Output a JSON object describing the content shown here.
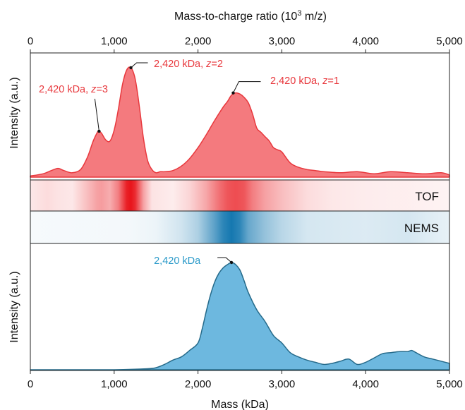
{
  "chart_data": {
    "type": "area",
    "top_axis": {
      "label_prefix": "Mass-to-charge ratio (10",
      "label_sup": "3",
      "label_suffix": " m/z)",
      "xlim": [
        0,
        5000
      ],
      "ticks": [
        0,
        1000,
        2000,
        3000,
        4000,
        5000
      ],
      "tick_labels": [
        "0",
        "1,000",
        "2,000",
        "3,000",
        "4,000",
        "5,000"
      ]
    },
    "bottom_axis": {
      "label": "Mass (kDa)",
      "xlim": [
        0,
        5000
      ],
      "ticks": [
        0,
        1000,
        2000,
        3000,
        4000,
        5000
      ],
      "tick_labels": [
        "0",
        "1,000",
        "2,000",
        "3,000",
        "4,000",
        "5,000"
      ]
    },
    "ylabel": "Intensity (a.u.)",
    "series": [
      {
        "name": "TOF",
        "color": "#e8383d",
        "fill": "#f47a7e",
        "x": [
          0,
          150,
          250,
          330,
          400,
          500,
          600,
          680,
          750,
          800,
          820,
          850,
          900,
          950,
          1000,
          1050,
          1100,
          1150,
          1200,
          1250,
          1300,
          1350,
          1400,
          1450,
          1500,
          1550,
          1600,
          1700,
          1800,
          1900,
          2000,
          2100,
          2200,
          2300,
          2350,
          2400,
          2450,
          2500,
          2550,
          2600,
          2650,
          2700,
          2750,
          2800,
          2850,
          2900,
          2950,
          3000,
          3100,
          3200,
          3300,
          3400,
          3500,
          3700,
          3900,
          4100,
          4300,
          4500,
          4700,
          4900,
          5000
        ],
        "y": [
          0.01,
          0.03,
          0.06,
          0.08,
          0.06,
          0.04,
          0.07,
          0.18,
          0.33,
          0.41,
          0.42,
          0.4,
          0.34,
          0.33,
          0.43,
          0.62,
          0.85,
          0.98,
          1.0,
          0.9,
          0.65,
          0.35,
          0.15,
          0.07,
          0.04,
          0.05,
          0.05,
          0.06,
          0.1,
          0.17,
          0.27,
          0.39,
          0.52,
          0.64,
          0.69,
          0.75,
          0.77,
          0.76,
          0.73,
          0.68,
          0.58,
          0.45,
          0.41,
          0.37,
          0.33,
          0.27,
          0.25,
          0.23,
          0.13,
          0.09,
          0.07,
          0.06,
          0.05,
          0.04,
          0.05,
          0.03,
          0.05,
          0.04,
          0.03,
          0.04,
          0.02
        ]
      },
      {
        "name": "NEMS",
        "color": "#256a8a",
        "fill": "#6db8df",
        "x": [
          0,
          500,
          1000,
          1400,
          1500,
          1600,
          1700,
          1800,
          1900,
          2000,
          2050,
          2100,
          2150,
          2200,
          2250,
          2300,
          2350,
          2400,
          2450,
          2500,
          2550,
          2600,
          2700,
          2800,
          2900,
          3000,
          3100,
          3200,
          3300,
          3400,
          3500,
          3600,
          3700,
          3800,
          3900,
          4000,
          4100,
          4200,
          4300,
          4400,
          4500,
          4550,
          4600,
          4700,
          4800,
          4900,
          5000
        ],
        "y": [
          0.0,
          0.0,
          0.0,
          0.01,
          0.02,
          0.05,
          0.09,
          0.12,
          0.18,
          0.25,
          0.38,
          0.55,
          0.7,
          0.82,
          0.9,
          0.95,
          0.98,
          1.0,
          0.98,
          0.93,
          0.83,
          0.72,
          0.56,
          0.45,
          0.32,
          0.25,
          0.16,
          0.12,
          0.09,
          0.07,
          0.05,
          0.06,
          0.08,
          0.1,
          0.05,
          0.07,
          0.11,
          0.15,
          0.16,
          0.17,
          0.17,
          0.18,
          0.16,
          0.12,
          0.1,
          0.08,
          0.06
        ]
      }
    ],
    "heat_strips": [
      {
        "label": "TOF",
        "color": "#e8141a",
        "x": [
          0,
          200,
          330,
          500,
          650,
          800,
          850,
          950,
          1050,
          1150,
          1200,
          1250,
          1350,
          1450,
          1700,
          1900,
          2100,
          2250,
          2350,
          2450,
          2550,
          2650,
          2800,
          3000,
          3300,
          3600,
          4000,
          4500,
          5000
        ],
        "v": [
          0.1,
          0.15,
          0.12,
          0.1,
          0.25,
          0.4,
          0.42,
          0.35,
          0.55,
          0.95,
          1.0,
          0.9,
          0.4,
          0.12,
          0.08,
          0.18,
          0.38,
          0.6,
          0.72,
          0.76,
          0.72,
          0.55,
          0.4,
          0.28,
          0.15,
          0.1,
          0.08,
          0.07,
          0.05
        ]
      },
      {
        "label": "NEMS",
        "color": "#1578b0",
        "x": [
          0,
          1200,
          1500,
          1800,
          2000,
          2200,
          2300,
          2400,
          2500,
          2600,
          2800,
          3000,
          3300,
          3700,
          4000,
          4500,
          5000
        ],
        "v": [
          0.04,
          0.05,
          0.08,
          0.2,
          0.35,
          0.7,
          0.9,
          1.0,
          0.9,
          0.65,
          0.45,
          0.3,
          0.18,
          0.16,
          0.15,
          0.18,
          0.1
        ]
      }
    ],
    "annotations": [
      {
        "series": "TOF",
        "text": "2,420 kDa, ",
        "z": "z",
        "zval": "=3",
        "x": 820,
        "y": 0.42,
        "color": "#e8383d"
      },
      {
        "series": "TOF",
        "text": "2,420 kDa, ",
        "z": "z",
        "zval": "=2",
        "x": 1200,
        "y": 1.0,
        "color": "#e8383d"
      },
      {
        "series": "TOF",
        "text": "2,420 kDa, ",
        "z": "z",
        "zval": "=1",
        "x": 2420,
        "y": 0.77,
        "color": "#e8383d"
      },
      {
        "series": "NEMS",
        "text": "2,420 kDa",
        "z": "",
        "zval": "",
        "x": 2400,
        "y": 1.0,
        "color": "#2b9ac9"
      }
    ]
  }
}
